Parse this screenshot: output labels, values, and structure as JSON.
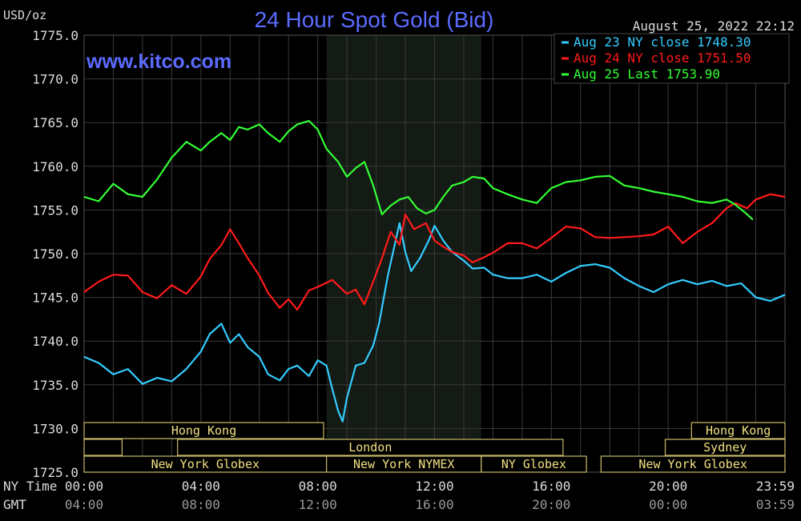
{
  "header": {
    "unit": "USD/oz",
    "title": "24 Hour Spot Gold (Bid)",
    "datetime": "August 25, 2022 22:12",
    "watermark": "www.kitco.com"
  },
  "legend": [
    {
      "label": "Aug 23 NY close 1748.30",
      "color": "#33ccff"
    },
    {
      "label": "Aug 24 NY close 1751.50",
      "color": "#ff1a1a"
    },
    {
      "label": "Aug 25 Last 1753.90",
      "color": "#33ff33"
    }
  ],
  "chart_data": {
    "type": "line",
    "title": "24 Hour Spot Gold (Bid)",
    "ylabel": "USD/oz",
    "ylim": [
      1725,
      1775
    ],
    "yticks": [
      "1775.0",
      "1770.0",
      "1765.0",
      "1760.0",
      "1755.0",
      "1750.0",
      "1745.0",
      "1740.0",
      "1735.0",
      "1730.0",
      "1725.0"
    ],
    "xlim": [
      0,
      24
    ],
    "x_axis_rows": [
      {
        "label": "NY Time",
        "ticks": [
          "00:00",
          "04:00",
          "08:00",
          "12:00",
          "16:00",
          "20:00",
          "23:59"
        ]
      },
      {
        "label": "GMT",
        "ticks": [
          "04:00",
          "08:00",
          "12:00",
          "16:00",
          "20:00",
          "00:00",
          "03:59"
        ]
      }
    ],
    "grid": true,
    "legend_position": "top-right",
    "shaded_session": [
      8.3,
      13.6
    ],
    "series": [
      {
        "name": "Aug 23 NY close 1748.30",
        "color": "#33ccff",
        "x": [
          0,
          0.5,
          1,
          1.5,
          2,
          2.5,
          3,
          3.5,
          4,
          4.3,
          4.7,
          5,
          5.3,
          5.6,
          6,
          6.3,
          6.7,
          7,
          7.3,
          7.7,
          8,
          8.3,
          8.5,
          8.7,
          8.85,
          9,
          9.3,
          9.6,
          9.9,
          10.1,
          10.4,
          10.6,
          10.8,
          11,
          11.2,
          11.5,
          11.8,
          12,
          12.3,
          12.6,
          13,
          13.3,
          13.7,
          14,
          14.5,
          15,
          15.5,
          16,
          16.5,
          17,
          17.5,
          18,
          18.5,
          19,
          19.5,
          20,
          20.5,
          21,
          21.5,
          22,
          22.5,
          23,
          23.5,
          24
        ],
        "values": [
          1738.2,
          1737.5,
          1736.2,
          1736.8,
          1735.1,
          1735.8,
          1735.4,
          1736.8,
          1738.8,
          1740.8,
          1742.0,
          1739.8,
          1740.8,
          1739.3,
          1738.2,
          1736.2,
          1735.5,
          1736.8,
          1737.2,
          1736.0,
          1737.8,
          1737.2,
          1734.5,
          1732.0,
          1730.8,
          1733.5,
          1737.2,
          1737.5,
          1739.5,
          1742.0,
          1747.5,
          1750.5,
          1753.5,
          1750.2,
          1748.0,
          1749.5,
          1751.5,
          1753.2,
          1751.5,
          1750.2,
          1749.2,
          1748.3,
          1748.4,
          1747.6,
          1747.2,
          1747.2,
          1747.6,
          1746.8,
          1747.8,
          1748.6,
          1748.8,
          1748.4,
          1747.2,
          1746.3,
          1745.6,
          1746.5,
          1747.0,
          1746.5,
          1746.9,
          1746.3,
          1746.6,
          1745.0,
          1744.6,
          1745.3
        ]
      },
      {
        "name": "Aug 24 NY close 1751.50",
        "color": "#ff1a1a",
        "x": [
          0,
          0.5,
          1,
          1.5,
          2,
          2.5,
          3,
          3.5,
          4,
          4.3,
          4.7,
          5,
          5.3,
          5.6,
          6,
          6.3,
          6.7,
          7,
          7.3,
          7.7,
          8,
          8.5,
          9,
          9.3,
          9.6,
          9.9,
          10.2,
          10.5,
          10.8,
          11,
          11.3,
          11.7,
          12,
          12.3,
          12.6,
          13,
          13.3,
          13.7,
          14,
          14.5,
          15,
          15.5,
          16,
          16.5,
          17,
          17.5,
          18,
          18.5,
          19,
          19.5,
          20,
          20.5,
          21,
          21.5,
          22,
          22.3,
          22.7,
          23,
          23.5,
          24
        ],
        "values": [
          1745.6,
          1746.8,
          1747.6,
          1747.5,
          1745.6,
          1744.9,
          1746.4,
          1745.4,
          1747.4,
          1749.4,
          1751.0,
          1752.8,
          1751.2,
          1749.5,
          1747.5,
          1745.5,
          1743.8,
          1744.8,
          1743.6,
          1745.8,
          1746.2,
          1747.0,
          1745.4,
          1745.9,
          1744.2,
          1746.8,
          1749.5,
          1752.5,
          1751.0,
          1754.5,
          1752.8,
          1753.5,
          1751.5,
          1750.8,
          1750.2,
          1749.8,
          1749.0,
          1749.6,
          1750.1,
          1751.2,
          1751.2,
          1750.6,
          1751.8,
          1753.1,
          1752.9,
          1751.9,
          1751.8,
          1751.9,
          1752.0,
          1752.2,
          1753.1,
          1751.2,
          1752.5,
          1753.5,
          1755.2,
          1755.8,
          1755.2,
          1756.2,
          1756.8,
          1756.5
        ]
      },
      {
        "name": "Aug 25 Last 1753.90",
        "color": "#33ff33",
        "x": [
          0,
          0.5,
          1,
          1.5,
          2,
          2.5,
          3,
          3.5,
          4,
          4.3,
          4.7,
          5,
          5.3,
          5.6,
          6,
          6.3,
          6.7,
          7,
          7.3,
          7.7,
          8,
          8.3,
          8.7,
          9,
          9.3,
          9.6,
          9.9,
          10.2,
          10.5,
          10.8,
          11.1,
          11.4,
          11.7,
          12,
          12.3,
          12.6,
          13,
          13.3,
          13.7,
          14,
          14.5,
          15,
          15.5,
          16,
          16.5,
          17,
          17.5,
          18,
          18.5,
          19,
          19.5,
          20,
          20.5,
          21,
          21.5,
          22,
          22.3,
          22.6,
          22.9
        ],
        "values": [
          1756.5,
          1756.0,
          1758.0,
          1756.8,
          1756.5,
          1758.5,
          1761.0,
          1762.8,
          1761.8,
          1762.8,
          1763.8,
          1763.0,
          1764.5,
          1764.2,
          1764.8,
          1763.8,
          1762.8,
          1764.0,
          1764.8,
          1765.2,
          1764.2,
          1762.0,
          1760.5,
          1758.8,
          1759.8,
          1760.5,
          1757.8,
          1754.5,
          1755.5,
          1756.2,
          1756.5,
          1755.2,
          1754.6,
          1755.0,
          1756.5,
          1757.8,
          1758.2,
          1758.8,
          1758.6,
          1757.5,
          1756.8,
          1756.2,
          1755.8,
          1757.5,
          1758.2,
          1758.4,
          1758.8,
          1758.9,
          1757.8,
          1757.5,
          1757.1,
          1756.8,
          1756.5,
          1756.0,
          1755.8,
          1756.2,
          1755.6,
          1754.8,
          1753.9
        ]
      }
    ]
  },
  "session_bands": {
    "rows": [
      [
        {
          "label": "Hong Kong",
          "start": 0,
          "end": 8.2
        },
        {
          "label": "Hong Kong",
          "start": 20.8,
          "end": 24
        }
      ],
      [
        {
          "label": "",
          "start": 0,
          "end": 1.3
        },
        {
          "label": "London",
          "start": 3.2,
          "end": 16.4
        },
        {
          "label": "Sydney",
          "start": 19.9,
          "end": 24
        }
      ],
      [
        {
          "label": "New York Globex",
          "start": 0,
          "end": 8.3
        },
        {
          "label": "New York NYMEX",
          "start": 8.3,
          "end": 13.6
        },
        {
          "label": "NY Globex",
          "start": 13.6,
          "end": 17.2
        },
        {
          "label": "New York Globex",
          "start": 17.7,
          "end": 24
        }
      ]
    ]
  }
}
